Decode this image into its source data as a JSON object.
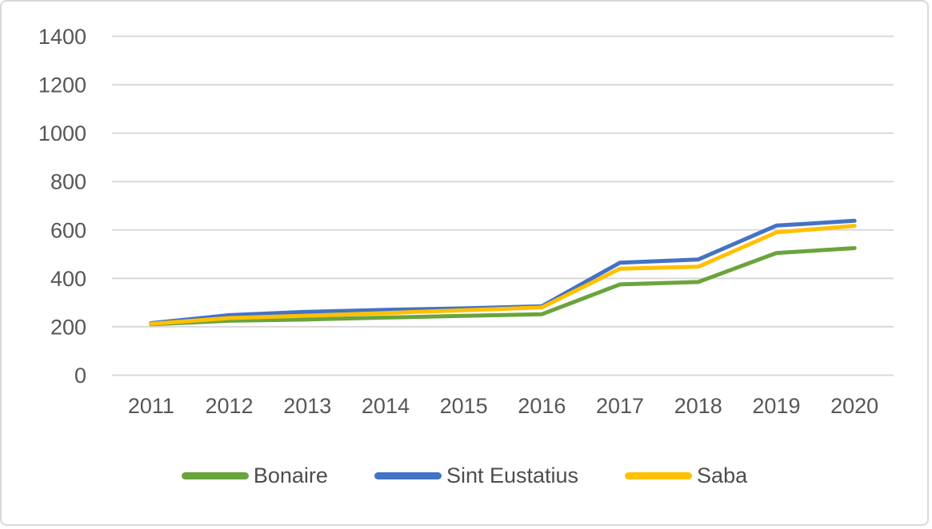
{
  "figure": {
    "background": "#ffffff",
    "border_color": "#d9d9d9"
  },
  "chart_data": {
    "type": "line",
    "title": "",
    "xlabel": "",
    "ylabel": "",
    "categories": [
      "2011",
      "2012",
      "2013",
      "2014",
      "2015",
      "2016",
      "2017",
      "2018",
      "2019",
      "2020"
    ],
    "series": [
      {
        "name": "Bonaire",
        "color": "#6aa43c",
        "values": [
          210,
          225,
          230,
          238,
          245,
          252,
          375,
          385,
          505,
          525
        ]
      },
      {
        "name": "Sint Eustatius",
        "color": "#4472c4",
        "values": [
          215,
          248,
          262,
          270,
          276,
          285,
          465,
          478,
          618,
          638
        ]
      },
      {
        "name": "Saba",
        "color": "#ffc000",
        "values": [
          212,
          236,
          246,
          257,
          268,
          280,
          440,
          448,
          590,
          617
        ]
      }
    ],
    "ylim": [
      0,
      1400
    ],
    "ytick_interval": 200,
    "ytick_labels": [
      "0",
      "200",
      "400",
      "600",
      "800",
      "1000",
      "1200",
      "1400"
    ],
    "grid": "horizontal",
    "gridline_color": "#d9d9d9",
    "axis_label_color": "#565656",
    "line_width": 5,
    "legend_position": "bottom"
  },
  "legend": {
    "items": [
      {
        "label": "Bonaire",
        "color": "#6aa43c"
      },
      {
        "label": "Sint Eustatius",
        "color": "#4472c4"
      },
      {
        "label": "Saba",
        "color": "#ffc000"
      }
    ]
  }
}
